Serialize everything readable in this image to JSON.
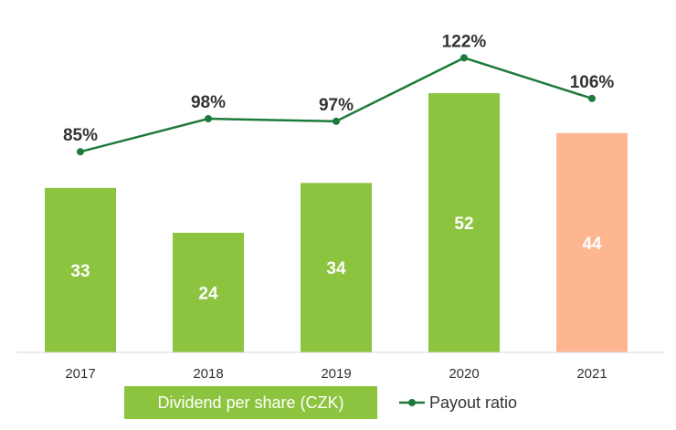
{
  "chart_data": {
    "type": "bar",
    "categories": [
      "2017",
      "2018",
      "2019",
      "2020",
      "2021"
    ],
    "series": [
      {
        "name": "Dividend per share (CZK)",
        "kind": "bar",
        "values": [
          33,
          24,
          34,
          52,
          44
        ],
        "colors": [
          "#8cc43f",
          "#8cc43f",
          "#8cc43f",
          "#8cc43f",
          "#fdb68f"
        ]
      },
      {
        "name": "Payout ratio",
        "kind": "line",
        "values": [
          85,
          98,
          97,
          122,
          106
        ],
        "labels": [
          "85%",
          "98%",
          "97%",
          "122%",
          "106%"
        ],
        "color": "#1e7a3c"
      }
    ],
    "title": "",
    "xlabel": "",
    "ylabel": "",
    "legend_position": "bottom"
  },
  "legend": {
    "bar_label": "Dividend per share (CZK)",
    "line_label": "Payout ratio"
  }
}
